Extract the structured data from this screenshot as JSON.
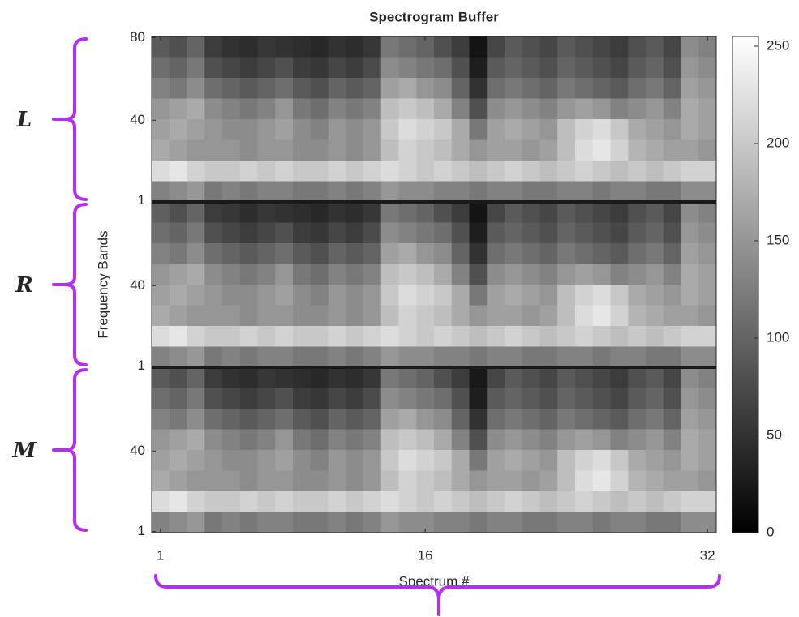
{
  "chart_data": {
    "type": "heatmap",
    "title": "Spectrogram Buffer",
    "xlabel": "Spectrum #",
    "ylabel": "Frequency Bands",
    "xlim": [
      0.5,
      32.5
    ],
    "xticks": [
      1,
      16,
      32
    ],
    "colormap": "gray",
    "annotation_color": "#b42ff0",
    "colorbar": {
      "clim": [
        0,
        255
      ],
      "ticks": [
        0,
        50,
        100,
        150,
        200,
        250
      ]
    },
    "panels": [
      {
        "annotation": "L",
        "ylim": [
          0.5,
          80.5
        ],
        "yticks": [
          1,
          40,
          80
        ],
        "z": [
          [
            90,
            80,
            100,
            60,
            50,
            45,
            55,
            50,
            45,
            40,
            50,
            45,
            55,
            120,
            110,
            100,
            80,
            60,
            20,
            70,
            90,
            80,
            70,
            90,
            80,
            70,
            60,
            80,
            90,
            70,
            140,
            130
          ],
          [
            110,
            100,
            120,
            80,
            70,
            60,
            70,
            80,
            60,
            55,
            70,
            60,
            75,
            140,
            130,
            120,
            110,
            80,
            30,
            90,
            100,
            90,
            80,
            100,
            90,
            80,
            70,
            90,
            100,
            80,
            150,
            140
          ],
          [
            130,
            120,
            140,
            110,
            100,
            90,
            100,
            110,
            90,
            80,
            100,
            90,
            100,
            160,
            170,
            150,
            140,
            100,
            50,
            110,
            120,
            110,
            100,
            120,
            110,
            100,
            90,
            110,
            120,
            100,
            160,
            150
          ],
          [
            150,
            160,
            170,
            140,
            130,
            120,
            130,
            150,
            120,
            110,
            130,
            120,
            130,
            190,
            200,
            190,
            170,
            130,
            80,
            140,
            150,
            140,
            130,
            150,
            160,
            150,
            130,
            140,
            150,
            130,
            170,
            160
          ],
          [
            160,
            170,
            160,
            150,
            140,
            140,
            150,
            160,
            140,
            130,
            150,
            140,
            150,
            200,
            220,
            210,
            200,
            170,
            120,
            160,
            170,
            160,
            150,
            190,
            210,
            220,
            200,
            170,
            160,
            150,
            170,
            160
          ],
          [
            170,
            160,
            150,
            150,
            150,
            140,
            150,
            150,
            140,
            140,
            150,
            140,
            150,
            190,
            210,
            200,
            190,
            170,
            150,
            160,
            160,
            150,
            160,
            190,
            220,
            230,
            210,
            180,
            170,
            160,
            160,
            150
          ],
          [
            220,
            230,
            210,
            200,
            200,
            210,
            200,
            210,
            200,
            200,
            210,
            200,
            210,
            220,
            210,
            200,
            210,
            200,
            190,
            200,
            210,
            200,
            190,
            200,
            210,
            200,
            190,
            200,
            190,
            200,
            210,
            210
          ],
          [
            130,
            140,
            150,
            120,
            130,
            120,
            130,
            130,
            120,
            120,
            130,
            120,
            130,
            150,
            140,
            140,
            130,
            130,
            120,
            130,
            130,
            120,
            120,
            130,
            130,
            120,
            130,
            130,
            120,
            120,
            140,
            140
          ]
        ]
      },
      {
        "annotation": "R",
        "ylim": [
          0.5,
          80.5
        ],
        "yticks": [
          1,
          40
        ],
        "z": [
          [
            95,
            80,
            100,
            60,
            55,
            45,
            55,
            50,
            45,
            40,
            50,
            45,
            55,
            120,
            110,
            100,
            80,
            60,
            20,
            70,
            90,
            80,
            70,
            90,
            80,
            70,
            60,
            80,
            90,
            70,
            140,
            130
          ],
          [
            110,
            100,
            120,
            80,
            70,
            60,
            70,
            80,
            60,
            55,
            70,
            60,
            75,
            140,
            130,
            120,
            110,
            80,
            30,
            90,
            100,
            90,
            80,
            100,
            90,
            80,
            70,
            90,
            100,
            80,
            150,
            140
          ],
          [
            130,
            120,
            140,
            110,
            100,
            90,
            100,
            110,
            90,
            80,
            100,
            90,
            100,
            160,
            170,
            150,
            140,
            100,
            50,
            110,
            120,
            110,
            100,
            120,
            110,
            100,
            90,
            110,
            120,
            100,
            160,
            150
          ],
          [
            150,
            160,
            170,
            140,
            130,
            120,
            130,
            150,
            120,
            110,
            130,
            120,
            130,
            190,
            200,
            190,
            170,
            130,
            80,
            140,
            150,
            140,
            130,
            150,
            160,
            150,
            130,
            140,
            150,
            130,
            170,
            160
          ],
          [
            160,
            170,
            160,
            150,
            140,
            140,
            150,
            160,
            140,
            130,
            150,
            140,
            150,
            200,
            220,
            210,
            200,
            170,
            120,
            160,
            170,
            160,
            150,
            190,
            210,
            220,
            200,
            170,
            160,
            150,
            170,
            160
          ],
          [
            170,
            160,
            150,
            150,
            150,
            140,
            150,
            150,
            140,
            140,
            150,
            140,
            150,
            190,
            210,
            200,
            190,
            170,
            150,
            160,
            160,
            150,
            160,
            190,
            220,
            230,
            210,
            180,
            170,
            160,
            160,
            150
          ],
          [
            220,
            230,
            210,
            200,
            200,
            210,
            200,
            210,
            200,
            200,
            210,
            200,
            210,
            220,
            210,
            200,
            210,
            200,
            190,
            200,
            210,
            200,
            190,
            200,
            210,
            200,
            190,
            200,
            190,
            200,
            210,
            210
          ],
          [
            130,
            140,
            150,
            120,
            130,
            120,
            130,
            130,
            120,
            120,
            130,
            120,
            130,
            150,
            140,
            140,
            130,
            130,
            120,
            130,
            130,
            120,
            120,
            130,
            130,
            120,
            130,
            130,
            120,
            120,
            140,
            140
          ]
        ]
      },
      {
        "annotation": "M",
        "ylim": [
          0.5,
          80.5
        ],
        "yticks": [
          1,
          40
        ],
        "z": [
          [
            90,
            80,
            100,
            60,
            50,
            45,
            55,
            50,
            45,
            40,
            50,
            45,
            55,
            120,
            110,
            100,
            80,
            60,
            25,
            70,
            90,
            80,
            70,
            90,
            80,
            70,
            60,
            80,
            90,
            70,
            140,
            130
          ],
          [
            110,
            100,
            120,
            80,
            70,
            60,
            70,
            80,
            60,
            55,
            70,
            60,
            75,
            140,
            130,
            120,
            110,
            80,
            30,
            90,
            100,
            90,
            80,
            100,
            90,
            80,
            70,
            90,
            100,
            80,
            150,
            140
          ],
          [
            130,
            120,
            140,
            110,
            100,
            90,
            100,
            110,
            90,
            80,
            100,
            90,
            100,
            160,
            170,
            150,
            140,
            100,
            50,
            110,
            120,
            110,
            100,
            120,
            110,
            100,
            90,
            110,
            120,
            100,
            160,
            150
          ],
          [
            150,
            160,
            170,
            140,
            130,
            120,
            130,
            150,
            120,
            110,
            130,
            120,
            130,
            190,
            200,
            190,
            170,
            130,
            80,
            140,
            150,
            140,
            130,
            150,
            160,
            150,
            130,
            140,
            150,
            130,
            170,
            160
          ],
          [
            160,
            170,
            160,
            150,
            140,
            140,
            150,
            160,
            140,
            130,
            150,
            140,
            150,
            200,
            220,
            210,
            200,
            170,
            120,
            160,
            170,
            160,
            150,
            190,
            210,
            220,
            200,
            170,
            160,
            150,
            170,
            160
          ],
          [
            170,
            160,
            150,
            150,
            150,
            140,
            150,
            150,
            140,
            140,
            150,
            140,
            150,
            190,
            210,
            200,
            190,
            170,
            150,
            160,
            160,
            150,
            160,
            190,
            220,
            230,
            210,
            180,
            170,
            160,
            160,
            150
          ],
          [
            220,
            230,
            210,
            200,
            200,
            210,
            200,
            210,
            200,
            200,
            210,
            200,
            210,
            220,
            210,
            200,
            210,
            200,
            190,
            200,
            210,
            200,
            190,
            200,
            210,
            200,
            190,
            200,
            190,
            200,
            210,
            210
          ],
          [
            130,
            140,
            150,
            120,
            130,
            120,
            130,
            130,
            120,
            120,
            130,
            120,
            130,
            150,
            140,
            140,
            130,
            130,
            120,
            130,
            130,
            120,
            120,
            130,
            130,
            120,
            130,
            130,
            120,
            120,
            140,
            140
          ]
        ]
      }
    ]
  }
}
